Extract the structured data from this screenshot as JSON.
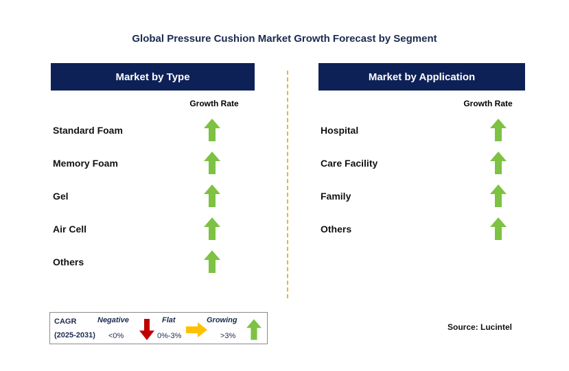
{
  "title": "Global Pressure Cushion Market Growth Forecast by Segment",
  "colors": {
    "header_bg": "#0e2157",
    "arrow_up": "#7dc242",
    "arrow_down": "#c00000",
    "arrow_flat": "#ffc000",
    "divider": "#f0b429"
  },
  "left_panel": {
    "header": "Market by Type",
    "column_label": "Growth Rate",
    "rows": [
      {
        "label": "Standard Foam",
        "trend": "growing"
      },
      {
        "label": "Memory Foam",
        "trend": "growing"
      },
      {
        "label": "Gel",
        "trend": "growing"
      },
      {
        "label": "Air Cell",
        "trend": "growing"
      },
      {
        "label": "Others",
        "trend": "growing"
      }
    ]
  },
  "right_panel": {
    "header": "Market by Application",
    "column_label": "Growth Rate",
    "rows": [
      {
        "label": "Hospital",
        "trend": "growing"
      },
      {
        "label": "Care Facility",
        "trend": "growing"
      },
      {
        "label": "Family",
        "trend": "growing"
      },
      {
        "label": "Others",
        "trend": "growing"
      }
    ]
  },
  "legend": {
    "cagr_label": "CAGR",
    "period": "(2025-2031)",
    "negative_label": "Negative",
    "negative_value": "<0%",
    "flat_label": "Flat",
    "flat_value": "0%-3%",
    "growing_label": "Growing",
    "growing_value": ">3%"
  },
  "source": "Source: Lucintel"
}
